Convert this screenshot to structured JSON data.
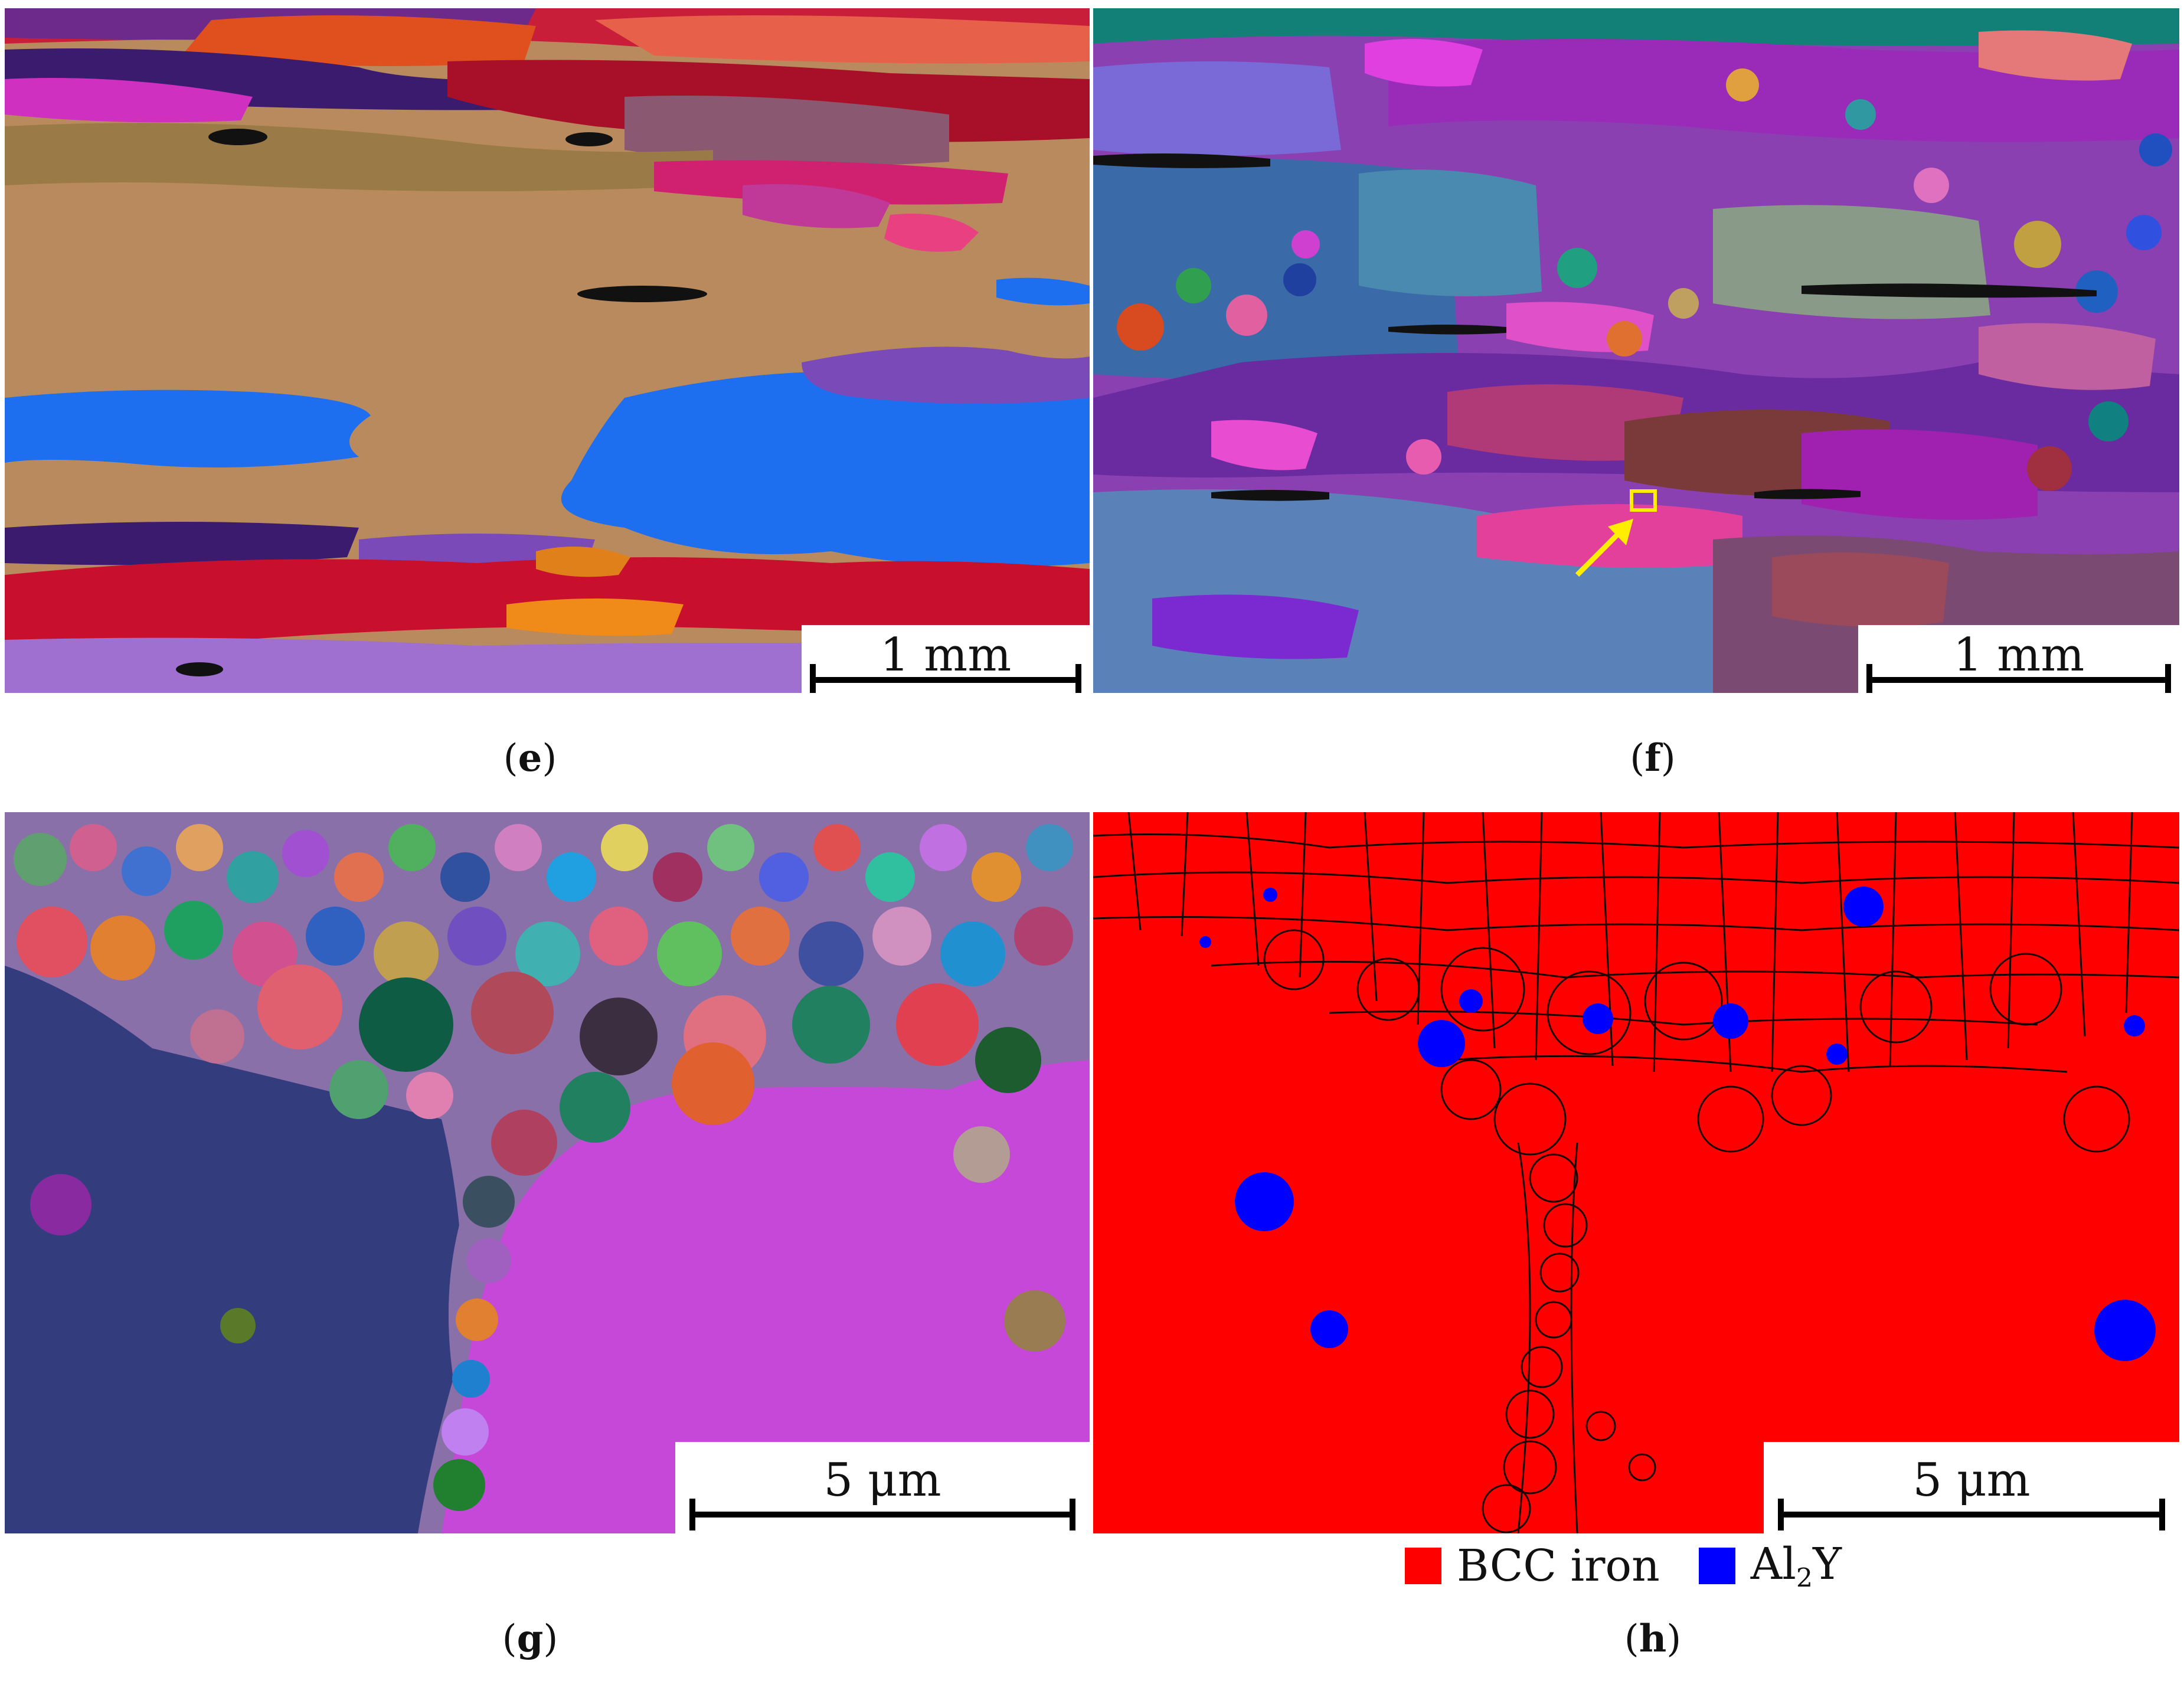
{
  "panels": {
    "e": {
      "label": "e",
      "scale_bar": "1 mm"
    },
    "f": {
      "label": "f",
      "scale_bar": "1 mm"
    },
    "g": {
      "label": "g",
      "scale_bar": "5 μm"
    },
    "h": {
      "label": "h",
      "scale_bar": "5 μm"
    }
  },
  "legend": {
    "items": [
      {
        "label": "BCC iron",
        "color": "#ff0000"
      },
      {
        "label_main": "Al",
        "label_sub": "2",
        "label_tail": "Y",
        "color": "#0000ff"
      }
    ]
  },
  "colors": {
    "phase_bcc": "#ff0000",
    "phase_al2y": "#0000ff",
    "arrow": "#ffee00"
  }
}
